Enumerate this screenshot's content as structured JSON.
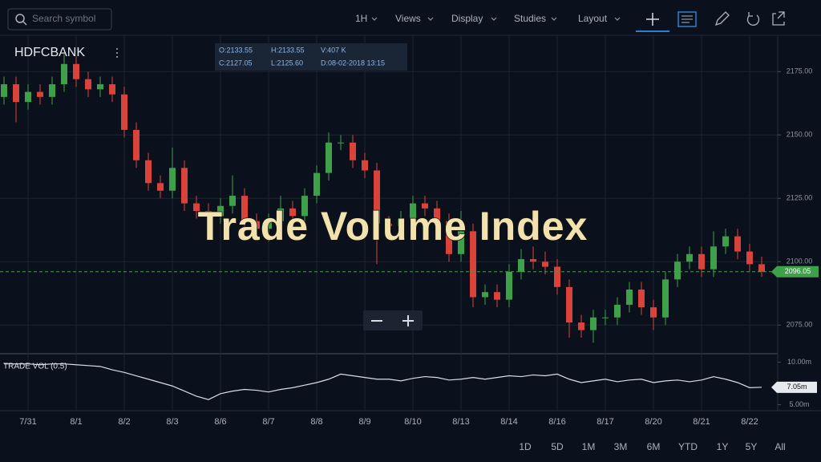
{
  "toolbar": {
    "search_placeholder": "Search symbol",
    "interval": "1H",
    "menus": [
      "Views",
      "Display",
      "Studies",
      "Layout"
    ]
  },
  "symbol": "HDFCBANK",
  "ohlc_box": {
    "open": "O:2133.55",
    "high": "H:2133.55",
    "volume": "V:407 K",
    "close": "C:2127.05",
    "low": "L:2125.60",
    "date": "D:08-02-2018 13:15"
  },
  "watermark": "Trade Volume Index",
  "chart_data": [
    {
      "type": "candlestick",
      "categories": [
        null,
        null,
        "7/31",
        null,
        null,
        null,
        "8/1",
        null,
        null,
        null,
        "8/2",
        null,
        null,
        null,
        "8/3",
        null,
        null,
        null,
        "8/6",
        null,
        null,
        null,
        "8/7",
        null,
        null,
        null,
        "8/8",
        null,
        null,
        null,
        "8/9",
        null,
        null,
        null,
        "8/10",
        null,
        null,
        null,
        "8/13",
        null,
        null,
        null,
        "8/14",
        null,
        null,
        null,
        "8/16",
        null,
        null,
        null,
        "8/17",
        null,
        null,
        null,
        "8/20",
        null,
        null,
        null,
        "8/21",
        null,
        null,
        null,
        "8/22",
        null
      ],
      "open": [
        2165,
        2170,
        2163,
        2167,
        2165,
        2170,
        2178,
        2172,
        2168,
        2170,
        2166,
        2152,
        2140,
        2131,
        2128,
        2137,
        2123,
        2120,
        2118,
        2122,
        2126,
        2116,
        2113,
        2116,
        2121,
        2118,
        2126,
        2135,
        2147,
        2147,
        2140,
        2136,
        2115,
        2114,
        2117,
        2123,
        2121,
        2116,
        2103,
        2112,
        2086,
        2088,
        2085,
        2096,
        2101,
        2100,
        2098,
        2090,
        2076,
        2073,
        2078,
        2078,
        2083,
        2089,
        2082,
        2078,
        2093,
        2100,
        2103,
        2097,
        2106,
        2110,
        2104,
        2099
      ],
      "high": [
        2173,
        2173,
        2170,
        2170,
        2173,
        2182,
        2181,
        2175,
        2173,
        2173,
        2169,
        2155,
        2143,
        2134,
        2145,
        2140,
        2126,
        2123,
        2125,
        2134,
        2129,
        2119,
        2119,
        2126,
        2124,
        2129,
        2138,
        2151,
        2150,
        2150,
        2143,
        2139,
        2118,
        2120,
        2126,
        2126,
        2124,
        2119,
        2120,
        2115,
        2091,
        2091,
        2099,
        2105,
        2106,
        2104,
        2101,
        2093,
        2079,
        2081,
        2081,
        2086,
        2092,
        2092,
        2085,
        2096,
        2103,
        2106,
        2106,
        2112,
        2113,
        2113,
        2107,
        2102
      ],
      "low": [
        2162,
        2155,
        2160,
        2162,
        2162,
        2167,
        2169,
        2165,
        2165,
        2163,
        2149,
        2137,
        2128,
        2125,
        2125,
        2120,
        2117,
        2115,
        2115,
        2119,
        2113,
        2110,
        2108,
        2113,
        2115,
        2115,
        2123,
        2132,
        2144,
        2137,
        2133,
        2099,
        2111,
        2111,
        2114,
        2118,
        2113,
        2100,
        2100,
        2082,
        2083,
        2082,
        2082,
        2093,
        2097,
        2095,
        2087,
        2070,
        2070,
        2068,
        2075,
        2075,
        2080,
        2079,
        2073,
        2075,
        2090,
        2097,
        2094,
        2094,
        2103,
        2101,
        2096,
        2094
      ],
      "close": [
        2170,
        2163,
        2167,
        2165,
        2170,
        2178,
        2172,
        2168,
        2170,
        2166,
        2152,
        2140,
        2131,
        2128,
        2137,
        2123,
        2120,
        2118,
        2122,
        2126,
        2116,
        2113,
        2116,
        2121,
        2118,
        2126,
        2135,
        2147,
        2147,
        2140,
        2136,
        2115,
        2114,
        2117,
        2123,
        2121,
        2116,
        2103,
        2112,
        2086,
        2088,
        2085,
        2096,
        2101,
        2100,
        2098,
        2090,
        2076,
        2073,
        2078,
        2078,
        2083,
        2089,
        2082,
        2078,
        2093,
        2100,
        2103,
        2097,
        2106,
        2110,
        2104,
        2099,
        2096.05
      ],
      "up_color": "#3fa04a",
      "down_color": "#d9433a",
      "ylim": [
        2064,
        2189
      ],
      "yticks": [
        {
          "value": 2075,
          "label": "2075.00"
        },
        {
          "value": 2100,
          "label": "2100.00"
        },
        {
          "value": 2125,
          "label": "2125.00"
        },
        {
          "value": 2150,
          "label": "2150.00"
        },
        {
          "value": 2175,
          "label": "2175.00"
        }
      ],
      "current": 2096.05,
      "grid": true
    },
    {
      "type": "line",
      "title": "TRADE VOL (0.5)",
      "color": "#d8dde6",
      "values": [
        9.8,
        9.8,
        9.8,
        9.7,
        9.8,
        9.8,
        9.7,
        9.6,
        9.5,
        9.1,
        8.8,
        8.4,
        8.0,
        7.6,
        7.2,
        6.6,
        6.0,
        5.6,
        6.3,
        6.6,
        6.8,
        6.7,
        6.5,
        6.8,
        7.0,
        7.3,
        7.6,
        8.0,
        8.6,
        8.4,
        8.2,
        8.0,
        8.0,
        7.8,
        8.1,
        8.3,
        8.2,
        7.9,
        8.0,
        8.2,
        8.0,
        8.2,
        8.4,
        8.3,
        8.5,
        8.4,
        8.6,
        8.0,
        7.6,
        7.8,
        8.0,
        7.7,
        7.9,
        8.0,
        7.6,
        7.8,
        7.9,
        7.7,
        7.9,
        8.3,
        8.0,
        7.6,
        7.0,
        7.05
      ],
      "ylim": [
        4.3,
        10.9
      ],
      "yticks": [
        {
          "value": 5,
          "label": "5.00m"
        },
        {
          "value": 10,
          "label": "10.00m"
        }
      ],
      "current": {
        "value": 7.05,
        "label": "7.05m"
      }
    }
  ],
  "ranges": [
    "1D",
    "5D",
    "1M",
    "3M",
    "6M",
    "YTD",
    "1Y",
    "5Y",
    "All"
  ]
}
